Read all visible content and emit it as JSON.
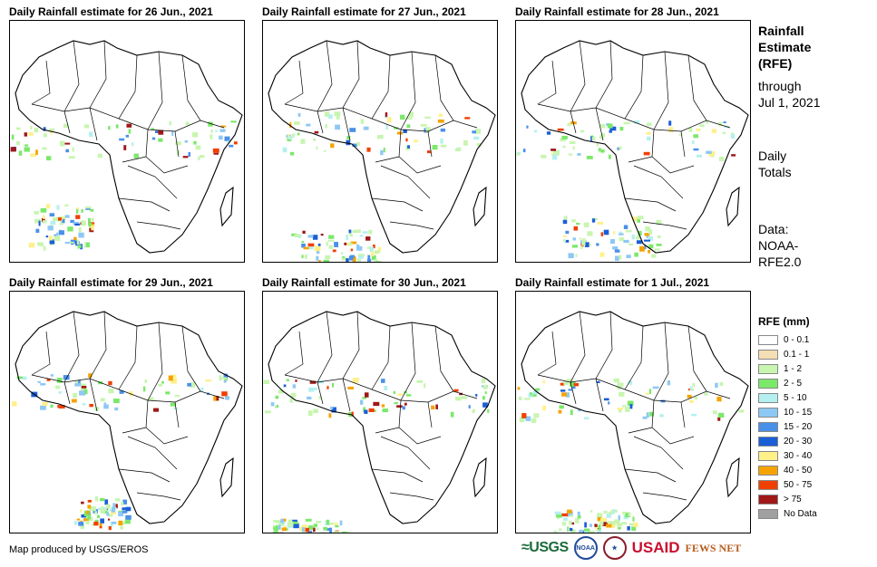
{
  "panels": [
    {
      "title": "Daily Rainfall estimate for 26 Jun., 2021"
    },
    {
      "title": "Daily Rainfall estimate for 27 Jun., 2021"
    },
    {
      "title": "Daily Rainfall estimate for 28 Jun., 2021"
    },
    {
      "title": "Daily Rainfall estimate for 29 Jun., 2021"
    },
    {
      "title": "Daily Rainfall estimate for 30 Jun., 2021"
    },
    {
      "title": "Daily Rainfall estimate for 1 Jul., 2021"
    }
  ],
  "side": {
    "title_line1": "Rainfall",
    "title_line2": "Estimate",
    "title_line3": "(RFE)",
    "through_line1": "through",
    "through_line2": "Jul 1, 2021",
    "daily_line1": "Daily",
    "daily_line2": "Totals",
    "data_line1": "Data:",
    "data_line2": "NOAA-",
    "data_line3": "RFE2.0"
  },
  "legend": {
    "title": "RFE (mm)",
    "items": [
      {
        "label": "0 - 0.1",
        "color": "#ffffff"
      },
      {
        "label": "0.1 - 1",
        "color": "#f5deb3"
      },
      {
        "label": "1 - 2",
        "color": "#c8f5b0"
      },
      {
        "label": "2 - 5",
        "color": "#7be86a"
      },
      {
        "label": "5 - 10",
        "color": "#b5f0f0"
      },
      {
        "label": "10 - 15",
        "color": "#8ec8f5"
      },
      {
        "label": "15 - 20",
        "color": "#4a90e8"
      },
      {
        "label": "20 - 30",
        "color": "#1a5ed8"
      },
      {
        "label": "30 - 40",
        "color": "#fff08a"
      },
      {
        "label": "40 - 50",
        "color": "#f5a300"
      },
      {
        "label": "50 - 75",
        "color": "#f04000"
      },
      {
        "label": "> 75",
        "color": "#a01818"
      },
      {
        "label": "No Data",
        "color": "#a0a0a0"
      }
    ]
  },
  "credit": "Map produced by USGS/EROS",
  "logos": {
    "usgs": "≈USGS",
    "noaa": "NOAA",
    "usaid": "USAID",
    "fews": "FEWS NET"
  }
}
